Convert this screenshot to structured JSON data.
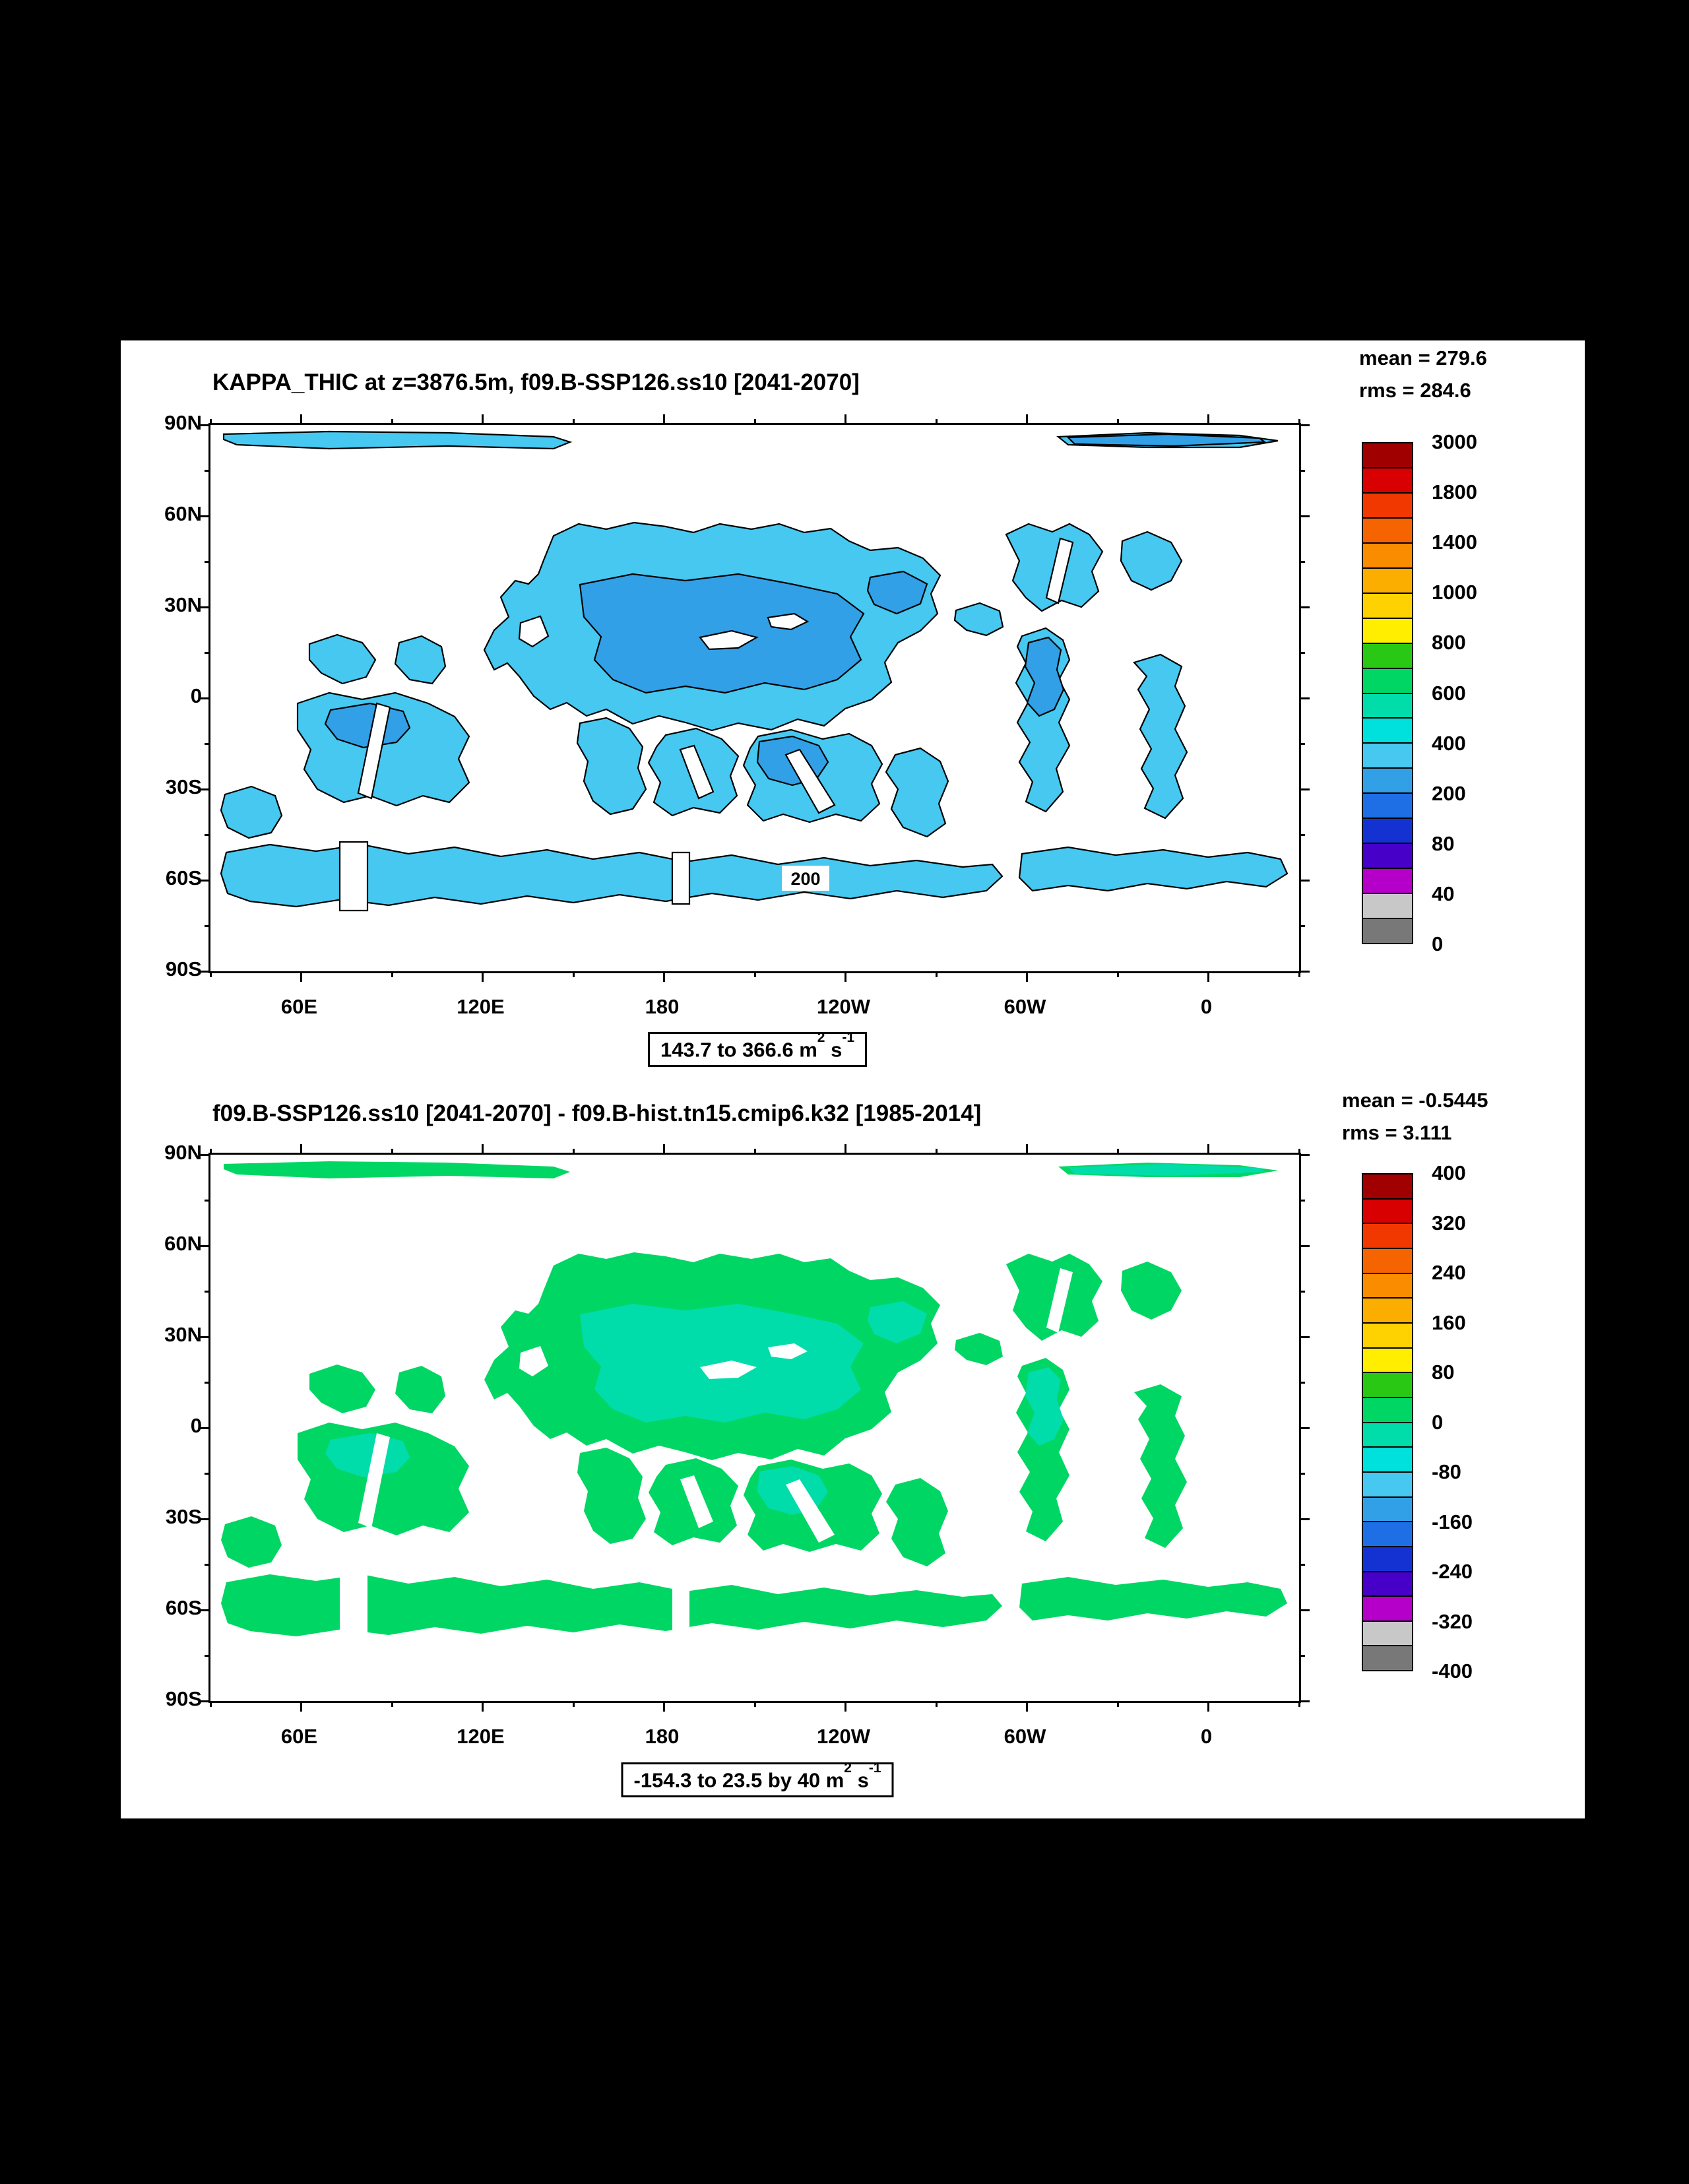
{
  "page": {
    "background": "#000000",
    "canvas_background": "#ffffff"
  },
  "palette": [
    "#a00000",
    "#d80000",
    "#f03800",
    "#f56400",
    "#fa8c00",
    "#fcae00",
    "#fdd200",
    "#ffee00",
    "#28c814",
    "#00d664",
    "#00dcaa",
    "#00e0dc",
    "#46c8f0",
    "#32a0e6",
    "#1e6ee6",
    "#1432d2",
    "#4600c8",
    "#b400c8",
    "#c8c8c8",
    "#787878"
  ],
  "chart_data": [
    {
      "type": "filled-contour-map",
      "title": "KAPPA_THIC at z=3876.5m, f09.B-SSP126.ss10 [2041-2070]",
      "mean": 279.6,
      "rms": 284.6,
      "mean_text": "mean = 279.6",
      "rms_text": "rms = 284.6",
      "range_min": 143.7,
      "range_max": 366.6,
      "units": "m2 s-1",
      "caption": "143.7 to 366.6 m2 s-1",
      "caption_parts": {
        "p1": "143.7 to 366.6 m",
        "sup1": "2",
        "p2": " s",
        "sup2": "-1"
      },
      "colorbar_labels": [
        "3000",
        "1800",
        "1400",
        "1000",
        "800",
        "600",
        "400",
        "200",
        "80",
        "40",
        "0"
      ],
      "lat_tick_labels": [
        "90N",
        "60N",
        "30N",
        "0",
        "30S",
        "60S",
        "90S"
      ],
      "lon_tick_labels": [
        "60E",
        "120E",
        "180",
        "120W",
        "60W",
        "0"
      ],
      "contour_line_label": "200",
      "map_colors": {
        "base": "#46c8f0",
        "overlay": "#32a0e6",
        "outlined": true
      }
    },
    {
      "type": "filled-contour-map-difference",
      "title": "f09.B-SSP126.ss10 [2041-2070] - f09.B-hist.tn15.cmip6.k32 [1985-2014]",
      "mean": -0.5445,
      "rms": 3.111,
      "mean_text": "mean = -0.5445",
      "rms_text": "rms = 3.111",
      "range_min": -154.3,
      "range_max": 23.5,
      "contour_interval": 40,
      "units": "m2 s-1",
      "caption": "-154.3 to 23.5 by 40 m2 s-1",
      "caption_parts": {
        "p1": "-154.3 to 23.5 by 40 m",
        "sup1": "2",
        "p2": " s",
        "sup2": "-1"
      },
      "colorbar_labels": [
        "400",
        "320",
        "240",
        "160",
        "80",
        "0",
        "-80",
        "-160",
        "-240",
        "-320",
        "-400"
      ],
      "lat_tick_labels": [
        "90N",
        "60N",
        "30N",
        "0",
        "30S",
        "60S",
        "90S"
      ],
      "lon_tick_labels": [
        "60E",
        "120E",
        "180",
        "120W",
        "60W",
        "0"
      ],
      "contour_line_label": null,
      "map_colors": {
        "base": "#00d664",
        "overlay": "#00dcaa",
        "outlined": false
      }
    }
  ],
  "map_shapes": {
    "regions": [
      "M 20 14 L 180 10 L 360 12 L 520 18 L 545 26 L 520 36 L 360 32 L 180 36 L 40 30 L 20 22 Z",
      "M 1285 18 L 1420 12 L 1560 16 L 1618 24 L 1560 34 L 1420 34 L 1300 30 Z",
      "M 505 205 L 520 168 L 558 150 L 600 158 L 642 148 L 690 154 L 732 163 L 772 150 L 820 158 L 862 150 L 900 163 L 940 157 L 968 176 L 1000 190 L 1042 186 L 1080 202 L 1106 228 L 1092 256 L 1102 286 L 1076 312 L 1042 330 L 1022 360 L 1032 390 L 1002 416 L 962 430 L 930 456 L 890 446 L 850 462 L 800 452 L 760 463 L 720 451 L 680 441 L 640 453 L 600 431 L 570 441 L 540 421 L 515 431 L 490 411 L 468 381 L 450 361 L 430 371 L 415 341 L 430 311 L 452 291 L 440 261 L 462 236 L 482 241 L 497 226 Z",
      "M 560 452 L 600 444 L 635 460 L 655 488 L 648 520 L 660 552 L 640 582 L 606 590 L 580 570 L 566 540 L 572 510 L 556 482 Z",
      "M 690 470 L 736 460 L 775 476 L 800 502 L 788 532 L 798 562 L 772 588 L 732 580 L 700 592 L 672 572 L 682 542 L 664 512 L 676 488 Z",
      "M 830 472 L 880 462 L 928 476 L 968 468 L 1002 486 L 1018 514 L 1002 544 L 1014 574 L 986 600 L 948 590 L 908 602 L 868 590 L 838 600 L 814 576 L 826 546 L 808 516 L 818 490 Z",
      "M 1038 500 L 1076 490 L 1106 510 L 1118 540 L 1104 574 L 1114 604 L 1086 624 L 1050 610 L 1032 582 L 1042 552 L 1024 526 Z",
      "M 150 332 L 192 318 L 230 330 L 250 356 L 236 382 L 200 392 L 168 376 L 150 356 Z",
      "M 286 330 L 320 320 L 350 336 L 356 366 L 336 392 L 302 386 L 280 362 Z",
      "M 132 422 L 180 406 L 230 416 L 280 406 L 330 422 L 370 442 L 392 472 L 376 506 L 392 542 L 362 572 L 322 562 L 282 577 L 242 562 L 202 572 L 162 552 L 142 522 L 152 492 L 132 462 Z",
      "M 1206 166 L 1240 150 L 1276 162 L 1302 150 L 1332 166 L 1352 192 L 1336 222 L 1346 252 L 1320 276 L 1290 266 L 1260 282 L 1236 262 L 1216 236 L 1226 206 Z",
      "M 1382 176 L 1420 162 L 1456 178 L 1472 206 L 1456 236 L 1426 250 L 1396 236 L 1380 206 Z",
      "M 1230 320 L 1266 308 L 1292 326 L 1302 356 L 1286 386 L 1302 416 L 1286 451 L 1302 486 L 1282 521 L 1292 556 L 1266 586 L 1236 571 L 1246 541 L 1226 511 L 1242 481 L 1223 451 L 1239 421 L 1221 391 L 1236 361 L 1223 336 Z",
      "M 1400 360 L 1440 348 L 1472 366 L 1462 396 L 1477 426 L 1462 461 L 1480 496 L 1462 531 L 1474 566 L 1447 596 L 1416 581 L 1429 551 L 1411 521 L 1426 491 L 1409 461 L 1423 431 L 1406 401 L 1419 381 Z",
      "M 1130 281 L 1166 270 L 1196 282 L 1201 306 L 1176 319 L 1146 311 L 1128 296 Z",
      "M 22 560 L 62 548 L 98 562 L 108 592 L 92 618 L 58 626 L 26 610 L 16 584 Z",
      "M 24 648 L 90 636 L 160 646 L 230 636 L 300 650 L 370 640 L 440 654 L 510 644 L 580 658 L 650 648 L 720 662 L 790 652 L 860 666 L 930 656 L 1000 668 L 1070 660 L 1140 670 L 1185 666 L 1200 684 L 1176 706 L 1110 716 L 1040 706 L 970 718 L 900 708 L 830 720 L 760 710 L 690 722 L 620 712 L 550 724 L 480 714 L 410 726 L 340 716 L 270 728 L 200 719 L 130 730 L 60 722 L 26 710 L 16 680 Z",
      "M 1230 650 L 1300 640 L 1372 652 L 1444 644 L 1512 655 L 1572 648 L 1622 658 L 1632 680 L 1600 700 L 1540 692 L 1480 703 L 1420 695 L 1360 706 L 1300 698 L 1246 706 L 1226 686 Z"
    ],
    "overlays": [
      "M 560 242 L 640 226 L 720 236 L 800 226 L 880 241 L 950 256 L 990 286 L 970 321 L 986 356 L 950 386 L 900 401 L 840 391 L 780 406 L 720 396 L 660 406 L 610 386 L 582 356 L 592 321 L 566 291 Z",
      "M 1000 231 L 1050 222 L 1086 241 L 1076 271 L 1040 286 L 1006 272 L 996 251 Z",
      "M 1240 330 L 1270 322 L 1289 341 L 1283 371 L 1293 401 L 1279 431 L 1256 441 L 1238 421 L 1249 391 L 1235 366 Z",
      "M 832 480 L 882 472 L 922 486 L 936 511 L 919 536 L 882 546 L 846 536 L 829 511 Z",
      "M 1300 19 L 1450 14 L 1590 20 L 1598 26 L 1460 32 L 1310 29 Z",
      "M 182 432 L 242 422 L 292 434 L 302 459 L 282 481 L 232 489 L 192 476 L 174 453 Z"
    ],
    "holes": [
      "M 742 322 L 790 312 L 828 322 L 800 338 L 756 340 Z",
      "M 845 292 L 885 286 L 905 298 L 880 310 L 850 306 Z",
      "M 872 500 L 893 492 L 946 576 L 922 588 Z",
      "M 712 492 L 733 486 L 762 556 L 740 566 Z",
      "M 252 422 L 272 428 L 244 566 L 224 558 Z",
      "M 1288 172 L 1307 178 L 1285 270 L 1267 262 Z",
      "M 196 632 L 238 632 L 238 736 L 196 736 Z",
      "M 700 648 L 726 648 L 726 726 L 700 726 Z",
      "M 470 300 L 500 290 L 512 320 L 488 336 L 468 324 Z"
    ]
  }
}
